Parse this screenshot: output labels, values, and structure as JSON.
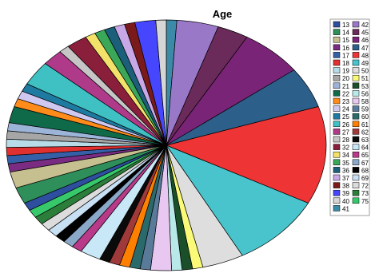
{
  "chart_data": {
    "type": "pie",
    "title": "Age",
    "legend": "right",
    "categories": [
      "13",
      "14",
      "15",
      "16",
      "17",
      "18",
      "19",
      "20",
      "21",
      "22",
      "23",
      "24",
      "25",
      "26",
      "27",
      "28",
      "32",
      "34",
      "35",
      "36",
      "37",
      "38",
      "39",
      "40",
      "41",
      "42",
      "45",
      "46",
      "47",
      "48",
      "49",
      "50",
      "51",
      "53",
      "56",
      "58",
      "59",
      "60",
      "61",
      "62",
      "63",
      "64",
      "65",
      "67",
      "68",
      "69",
      "72",
      "73",
      "75"
    ],
    "values": [
      1,
      2,
      2,
      1,
      1,
      1,
      1,
      1,
      1,
      2,
      1,
      1,
      1,
      3,
      2,
      1,
      2,
      1,
      1,
      1,
      1,
      1,
      2,
      1,
      1,
      4,
      3,
      6,
      5,
      12,
      9,
      4,
      1,
      1,
      1,
      2,
      1,
      1,
      1,
      1,
      1,
      2,
      1,
      1,
      1,
      1,
      1,
      1,
      1
    ],
    "colors": [
      "#2e4fa0",
      "#2f8f5a",
      "#c6c090",
      "#7a2c82",
      "#3560a8",
      "#e03030",
      "#b8dbe8",
      "#a6a6a6",
      "#9cb4d8",
      "#0f6a4a",
      "#ff8c1a",
      "#cfc8f0",
      "#1e7aa0",
      "#3fc0c2",
      "#b03a8a",
      "#c6c6c6",
      "#8a1f3c",
      "#f3e26a",
      "#3aa858",
      "#1c5f7a",
      "#c9a8e8",
      "#7a1a1a",
      "#4646ff",
      "#d6d6d6",
      "#3a8aa8",
      "#9a78c8",
      "#6a2a5a",
      "#7a2478",
      "#2c5f8a",
      "#ee3434",
      "#49c4cc",
      "#dedede",
      "#fbfa78",
      "#1a4f2a",
      "#b8e8e8",
      "#e8c8f0",
      "#5a7a9a",
      "#2a6a6a",
      "#ff7f00",
      "#a03a3a",
      "#0a0a0a",
      "#c8e8f8",
      "#b83a88",
      "#8aa8c8",
      "#000000",
      "#c8e0f4",
      "#dcdcdc",
      "#2c7f3a",
      "#36c86a"
    ]
  }
}
